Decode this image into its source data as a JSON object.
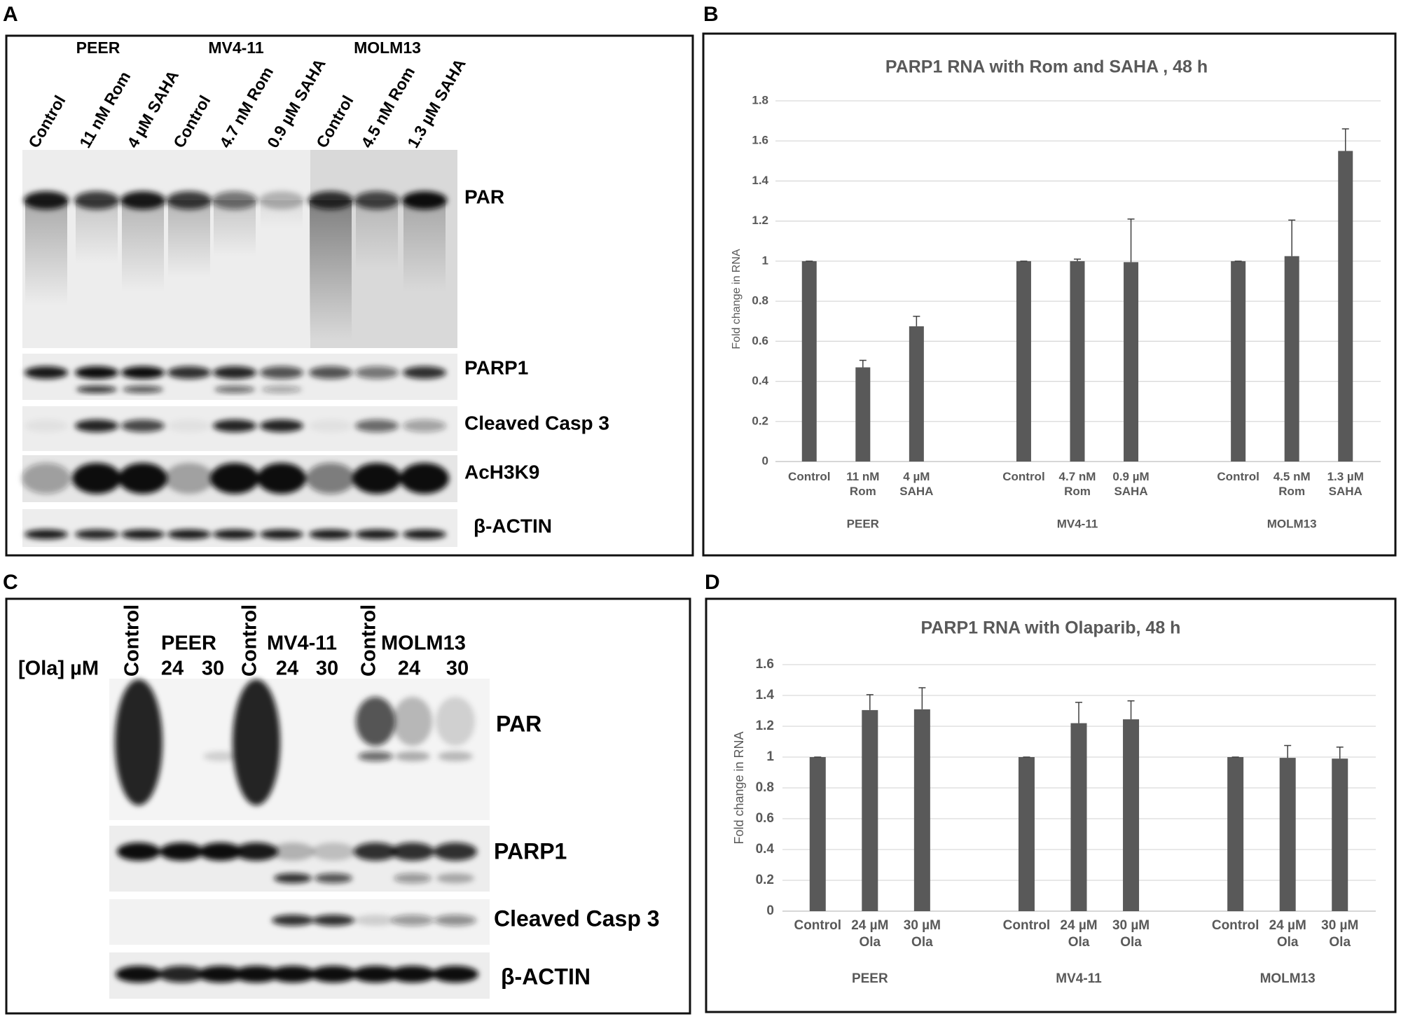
{
  "panel_labels": [
    "A",
    "B",
    "C",
    "D"
  ],
  "panel_a": {
    "cell_lines": [
      "PEER",
      "MV4-11",
      "MOLM13"
    ],
    "lanes": [
      "Control",
      "11 nM Rom",
      "4 µM SAHA",
      "Control",
      "4.7 nM Rom",
      "0.9 µM SAHA",
      "Control",
      "4.5 nM Rom",
      "1.3 µM SAHA"
    ],
    "rows": [
      "PAR",
      "PARP1",
      "Cleaved Casp 3",
      "AcH3K9",
      "β-ACTIN"
    ]
  },
  "panel_c": {
    "dose_label": "[Ola] µM",
    "controls": [
      "Control",
      "Control",
      "Control"
    ],
    "cell_lines": [
      "PEER",
      "MV4-11",
      "MOLM13"
    ],
    "doses": [
      "24",
      "30",
      "24",
      "30",
      "24",
      "30"
    ],
    "rows": [
      "PAR",
      "PARP1",
      "Cleaved Casp 3",
      "β-ACTIN"
    ]
  },
  "chart_data": [
    {
      "type": "bar",
      "title": "PARP1 RNA  with Rom and SAHA , 48 h",
      "y_label": "Fold change in RNA",
      "groups": [
        "PEER",
        "MV4-11",
        "MOLM13"
      ],
      "categories": [
        "Control",
        "11 nM Rom",
        "4 µM SAHA",
        "Control",
        "4.7 nM Rom",
        "0.9 µM SAHA",
        "Control",
        "4.5 nM Rom",
        "1.3 µM SAHA"
      ],
      "values": [
        1,
        0.47,
        0.675,
        1,
        1,
        0.995,
        1,
        1.025,
        1.55
      ],
      "errors": [
        0,
        0.035,
        0.05,
        0,
        0.01,
        0.215,
        0,
        0.18,
        0.11
      ],
      "color": "#595959",
      "ylim": [
        0,
        1.8
      ],
      "yticks": [
        0,
        0.2,
        0.4,
        0.6,
        0.8,
        1,
        1.2,
        1.4,
        1.6,
        1.8
      ],
      "grid": true
    },
    {
      "type": "bar",
      "title": "PARP1 RNA with Olaparib, 48 h",
      "y_label": "Fold change in RNA",
      "groups": [
        "PEER",
        "MV4-11",
        "MOLM13"
      ],
      "categories": [
        "Control",
        "24 µM Ola",
        "30 µM Ola",
        "Control",
        "24 µM Ola",
        "30 µM Ola",
        "Control",
        "24 µM Ola",
        "30 µM Ola"
      ],
      "values": [
        1,
        1.305,
        1.31,
        1,
        1.22,
        1.245,
        1,
        0.995,
        0.99
      ],
      "errors": [
        0,
        0.1,
        0.14,
        0,
        0.135,
        0.12,
        0,
        0.08,
        0.075
      ],
      "color": "#595959",
      "ylim": [
        0,
        1.6
      ],
      "yticks": [
        0,
        0.2,
        0.4,
        0.6,
        0.8,
        1,
        1.2,
        1.4,
        1.6
      ],
      "grid": true
    }
  ]
}
